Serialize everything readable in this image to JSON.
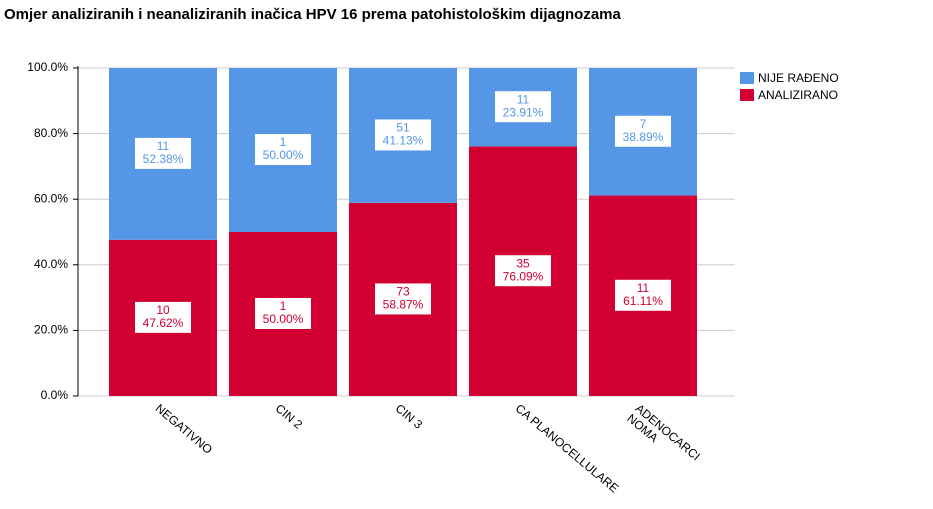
{
  "chart_data": {
    "type": "stacked_bar",
    "title": "Omjer analiziranih i neanaliziranih inačica HPV 16 prema patohistološkim dijagnozama",
    "categories": [
      "NEGATIVNO",
      "CIN 2",
      "CIN 3",
      "CA PLANOCELLULARE",
      "ADENOCARCI\nNOMA"
    ],
    "series": [
      {
        "name": "ANALIZIRANO",
        "color": "#d20032",
        "values": [
          47.62,
          50.0,
          58.87,
          76.09,
          61.11
        ],
        "value_labels": [
          "47.62%",
          "50.00%",
          "58.87%",
          "76.09%",
          "61.11%"
        ],
        "counts": [
          10,
          1,
          73,
          35,
          11
        ]
      },
      {
        "name": "NIJE RAĐENO",
        "color": "#5596e6",
        "values": [
          52.38,
          50.0,
          41.13,
          23.91,
          38.89
        ],
        "value_labels": [
          "52.38%",
          "50.00%",
          "41.13%",
          "23.91%",
          "38.89%"
        ],
        "counts": [
          11,
          1,
          51,
          11,
          7
        ]
      }
    ],
    "ylim": [
      0,
      100
    ],
    "yticks": [
      {
        "value": 0,
        "label": "0.0%"
      },
      {
        "value": 20,
        "label": "20.0%"
      },
      {
        "value": 40,
        "label": "40.0%"
      },
      {
        "value": 60,
        "label": "60.0%"
      },
      {
        "value": 80,
        "label": "80.0%"
      },
      {
        "value": 100,
        "label": "100.0%"
      }
    ],
    "grid": true,
    "legend": "right"
  }
}
